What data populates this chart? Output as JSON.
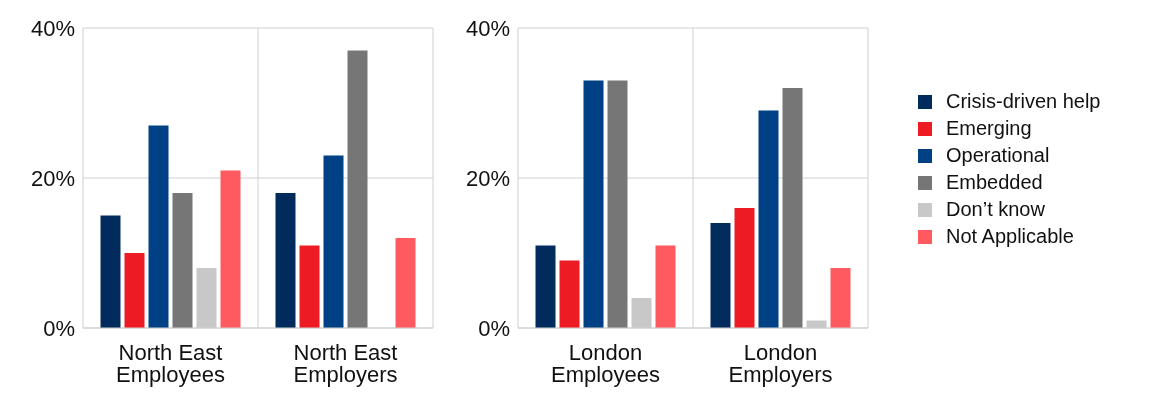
{
  "chart_data": [
    {
      "type": "bar",
      "categories": [
        "North East Employees",
        "North East Employers"
      ],
      "series": [
        {
          "color": "#002b5c",
          "values": [
            15,
            18
          ]
        },
        {
          "color": "#ed1c24",
          "values": [
            10,
            11
          ]
        },
        {
          "color": "#004185",
          "values": [
            27,
            23
          ]
        },
        {
          "color": "#767676",
          "values": [
            18,
            37
          ]
        },
        {
          "color": "#c8c8c8",
          "values": [
            8,
            null
          ]
        },
        {
          "color": "#ff5a5f",
          "values": [
            21,
            12
          ]
        }
      ],
      "ylim": [
        0,
        40
      ],
      "yticks": [
        {
          "value": 0,
          "label": "0%"
        },
        {
          "value": 20,
          "label": "20%"
        },
        {
          "value": 40,
          "label": "40%"
        }
      ],
      "grid": true,
      "legend": false
    },
    {
      "type": "bar",
      "categories": [
        "London Employees",
        "London Employers"
      ],
      "series": [
        {
          "name": "Crisis-driven help",
          "color": "#002b5c",
          "values": [
            11,
            14
          ]
        },
        {
          "name": "Emerging",
          "color": "#ed1c24",
          "values": [
            9,
            16
          ]
        },
        {
          "name": "Operational",
          "color": "#004185",
          "values": [
            33,
            29
          ]
        },
        {
          "name": "Embedded",
          "color": "#767676",
          "values": [
            33,
            32
          ]
        },
        {
          "name": "Don’t know",
          "color": "#c8c8c8",
          "values": [
            4,
            1
          ]
        },
        {
          "name": "Not Applicable",
          "color": "#ff5a5f",
          "values": [
            11,
            8
          ]
        }
      ],
      "ylim": [
        0,
        40
      ],
      "yticks": [
        {
          "value": 0,
          "label": "0%"
        },
        {
          "value": 20,
          "label": "20%"
        },
        {
          "value": 40,
          "label": "40%"
        }
      ],
      "grid": true,
      "legend": "right"
    }
  ]
}
